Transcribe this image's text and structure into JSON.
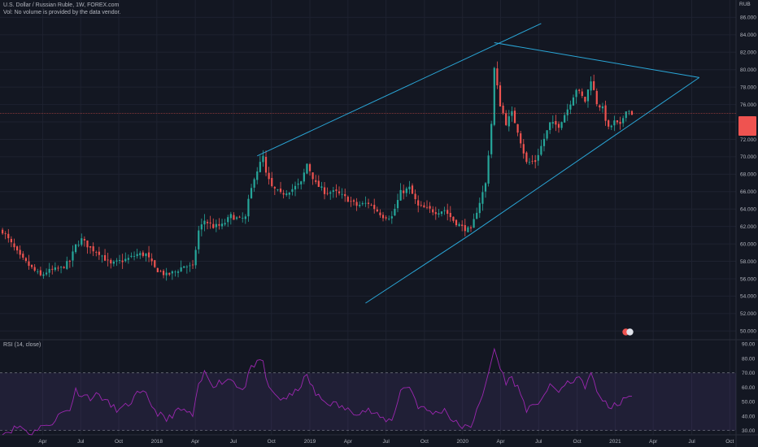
{
  "header": {
    "symbol_title": "U.S. Dollar / Russian Ruble, 1W, FOREX.com",
    "volume_note": "Vol: No volume is provided by the data vendor."
  },
  "indicator": {
    "label": "RSI (14, close)"
  },
  "axis": {
    "currency": "RUB",
    "price_ticks": [
      86,
      84,
      82,
      80,
      78,
      76,
      74,
      72,
      70,
      68,
      66,
      64,
      62,
      60,
      58,
      56,
      54,
      52,
      50
    ],
    "rsi_ticks": [
      90,
      80,
      70,
      60,
      50,
      40,
      30
    ],
    "time_ticks": [
      "Apr",
      "Jul",
      "Oct",
      "2018",
      "Apr",
      "Jul",
      "Oct",
      "2019",
      "Apr",
      "Jul",
      "Oct",
      "2020",
      "Apr",
      "Jul",
      "Oct",
      "2021",
      "Apr",
      "Jul",
      "Oct"
    ]
  },
  "colors": {
    "background": "#131722",
    "up": "#26a69a",
    "down": "#ef5350",
    "trendline": "#2aa7d8",
    "rsi": "#9c27b0",
    "rsi_band": "#7e57c2",
    "grid": "#1e2230"
  },
  "chart_data": [
    {
      "type": "candlestick",
      "title": "U.S. Dollar / Russian Ruble, 1W, FOREX.com",
      "ylim": [
        49,
        88
      ],
      "x_range": [
        "2016-12-20",
        "2021-10-15"
      ],
      "anchor_closes": [
        [
          "2016-12-26",
          61.5
        ],
        [
          "2017-02-06",
          58.5
        ],
        [
          "2017-03-06",
          57.2
        ],
        [
          "2017-03-27",
          56.3
        ],
        [
          "2017-04-10",
          56.8
        ],
        [
          "2017-05-15",
          57.2
        ],
        [
          "2017-06-05",
          58.0
        ],
        [
          "2017-06-19",
          59.8
        ],
        [
          "2017-07-03",
          60.5
        ],
        [
          "2017-07-24",
          59.5
        ],
        [
          "2017-08-14",
          59.0
        ],
        [
          "2017-09-11",
          57.6
        ],
        [
          "2017-10-02",
          58.0
        ],
        [
          "2017-10-23",
          58.3
        ],
        [
          "2017-11-13",
          58.8
        ],
        [
          "2017-12-04",
          58.8
        ],
        [
          "2017-12-25",
          57.2
        ],
        [
          "2018-01-22",
          56.4
        ],
        [
          "2018-02-12",
          56.8
        ],
        [
          "2018-03-05",
          57.5
        ],
        [
          "2018-03-26",
          57.3
        ],
        [
          "2018-04-09",
          61.5
        ],
        [
          "2018-04-23",
          62.7
        ],
        [
          "2018-05-14",
          62.0
        ],
        [
          "2018-06-04",
          62.1
        ],
        [
          "2018-06-25",
          63.2
        ],
        [
          "2018-07-16",
          62.8
        ],
        [
          "2018-07-30",
          63.0
        ],
        [
          "2018-08-06",
          64.9
        ],
        [
          "2018-08-20",
          67.7
        ],
        [
          "2018-09-10",
          70.0
        ],
        [
          "2018-09-17",
          68.0
        ],
        [
          "2018-10-01",
          66.5
        ],
        [
          "2018-10-22",
          65.7
        ],
        [
          "2018-11-19",
          66.3
        ],
        [
          "2018-12-10",
          67.0
        ],
        [
          "2018-12-24",
          69.2
        ],
        [
          "2019-01-14",
          66.9
        ],
        [
          "2019-02-04",
          66.0
        ],
        [
          "2019-03-04",
          65.9
        ],
        [
          "2019-04-01",
          65.1
        ],
        [
          "2019-04-22",
          64.4
        ],
        [
          "2019-05-20",
          64.7
        ],
        [
          "2019-06-10",
          63.8
        ],
        [
          "2019-06-24",
          63.2
        ],
        [
          "2019-07-15",
          63.1
        ],
        [
          "2019-08-05",
          65.9
        ],
        [
          "2019-08-26",
          66.4
        ],
        [
          "2019-09-16",
          64.3
        ],
        [
          "2019-10-07",
          64.0
        ],
        [
          "2019-10-28",
          63.7
        ],
        [
          "2019-11-18",
          63.9
        ],
        [
          "2019-12-09",
          62.7
        ],
        [
          "2019-12-30",
          61.9
        ],
        [
          "2020-01-20",
          61.5
        ],
        [
          "2020-02-03",
          63.8
        ],
        [
          "2020-02-24",
          66.9
        ],
        [
          "2020-03-09",
          73.8
        ],
        [
          "2020-03-16",
          80.1
        ],
        [
          "2020-03-23",
          78.0
        ],
        [
          "2020-03-30",
          76.0
        ],
        [
          "2020-04-13",
          73.9
        ],
        [
          "2020-04-27",
          75.0
        ],
        [
          "2020-05-11",
          73.0
        ],
        [
          "2020-06-01",
          69.3
        ],
        [
          "2020-06-22",
          69.5
        ],
        [
          "2020-07-06",
          71.2
        ],
        [
          "2020-07-27",
          73.8
        ],
        [
          "2020-08-17",
          73.6
        ],
        [
          "2020-09-07",
          75.5
        ],
        [
          "2020-09-28",
          77.8
        ],
        [
          "2020-10-19",
          76.4
        ],
        [
          "2020-11-02",
          78.9
        ],
        [
          "2020-11-16",
          76.2
        ],
        [
          "2020-11-30",
          75.5
        ],
        [
          "2020-12-14",
          73.2
        ],
        [
          "2020-12-28",
          74.0
        ],
        [
          "2021-01-11",
          73.5
        ],
        [
          "2021-01-25",
          75.5
        ],
        [
          "2021-02-08",
          75.0
        ]
      ],
      "last_price_line": 75.0,
      "trendlines": [
        {
          "name": "upper-channel",
          "from": [
            "2018-08-27",
            70.1
          ],
          "to": [
            "2020-07-06",
            85.3
          ]
        },
        {
          "name": "triangle-top",
          "from": [
            "2020-03-16",
            83.1
          ],
          "to": [
            "2021-07-19",
            79.1
          ]
        },
        {
          "name": "triangle-bottom",
          "from": [
            "2020-01-13",
            60.9
          ],
          "to": [
            "2021-07-19",
            79.1
          ]
        },
        {
          "name": "lower-channel",
          "from": [
            "2019-05-13",
            53.2
          ],
          "to": [
            "2020-01-13",
            60.9
          ]
        }
      ]
    },
    {
      "type": "line",
      "title": "RSI (14, close)",
      "ylim": [
        27,
        93
      ],
      "bands": [
        70,
        30
      ],
      "anchor_values": [
        [
          "2016-12-26",
          28
        ],
        [
          "2017-02-06",
          33
        ],
        [
          "2017-03-06",
          27
        ],
        [
          "2017-03-27",
          34
        ],
        [
          "2017-04-10",
          32
        ],
        [
          "2017-05-15",
          42
        ],
        [
          "2017-06-05",
          45
        ],
        [
          "2017-06-19",
          58
        ],
        [
          "2017-07-03",
          55
        ],
        [
          "2017-07-24",
          53
        ],
        [
          "2017-08-14",
          55
        ],
        [
          "2017-09-11",
          47
        ],
        [
          "2017-10-02",
          44
        ],
        [
          "2017-10-23",
          48
        ],
        [
          "2017-11-13",
          55
        ],
        [
          "2017-12-04",
          55
        ],
        [
          "2017-12-25",
          44
        ],
        [
          "2018-01-22",
          37
        ],
        [
          "2018-02-12",
          43
        ],
        [
          "2018-03-05",
          44
        ],
        [
          "2018-03-26",
          40
        ],
        [
          "2018-04-09",
          60
        ],
        [
          "2018-04-23",
          70
        ],
        [
          "2018-05-14",
          62
        ],
        [
          "2018-06-04",
          64
        ],
        [
          "2018-06-25",
          66
        ],
        [
          "2018-07-16",
          60
        ],
        [
          "2018-07-30",
          60
        ],
        [
          "2018-08-06",
          70
        ],
        [
          "2018-08-20",
          76
        ],
        [
          "2018-09-10",
          77
        ],
        [
          "2018-09-17",
          66
        ],
        [
          "2018-10-01",
          56
        ],
        [
          "2018-10-22",
          52
        ],
        [
          "2018-11-19",
          54
        ],
        [
          "2018-12-10",
          62
        ],
        [
          "2018-12-24",
          68
        ],
        [
          "2019-01-14",
          55
        ],
        [
          "2019-02-04",
          50
        ],
        [
          "2019-03-04",
          48
        ],
        [
          "2019-04-01",
          44
        ],
        [
          "2019-04-22",
          43
        ],
        [
          "2019-05-20",
          44
        ],
        [
          "2019-06-10",
          40
        ],
        [
          "2019-06-24",
          38
        ],
        [
          "2019-07-15",
          37
        ],
        [
          "2019-08-05",
          58
        ],
        [
          "2019-08-26",
          61
        ],
        [
          "2019-09-16",
          47
        ],
        [
          "2019-10-07",
          44
        ],
        [
          "2019-10-28",
          42
        ],
        [
          "2019-11-18",
          45
        ],
        [
          "2019-12-09",
          36
        ],
        [
          "2019-12-30",
          33
        ],
        [
          "2020-01-20",
          31
        ],
        [
          "2020-02-03",
          46
        ],
        [
          "2020-02-24",
          60
        ],
        [
          "2020-03-09",
          78
        ],
        [
          "2020-03-16",
          87
        ],
        [
          "2020-03-23",
          80
        ],
        [
          "2020-03-30",
          73
        ],
        [
          "2020-04-13",
          64
        ],
        [
          "2020-04-27",
          66
        ],
        [
          "2020-05-11",
          60
        ],
        [
          "2020-06-01",
          45
        ],
        [
          "2020-06-22",
          46
        ],
        [
          "2020-07-06",
          53
        ],
        [
          "2020-07-27",
          60
        ],
        [
          "2020-08-17",
          58
        ],
        [
          "2020-09-07",
          62
        ],
        [
          "2020-09-28",
          67
        ],
        [
          "2020-10-19",
          61
        ],
        [
          "2020-11-02",
          69
        ],
        [
          "2020-11-16",
          57
        ],
        [
          "2020-11-30",
          52
        ],
        [
          "2020-12-14",
          45
        ],
        [
          "2020-12-28",
          49
        ],
        [
          "2021-01-11",
          47
        ],
        [
          "2021-01-25",
          55
        ],
        [
          "2021-02-08",
          52
        ]
      ]
    }
  ]
}
